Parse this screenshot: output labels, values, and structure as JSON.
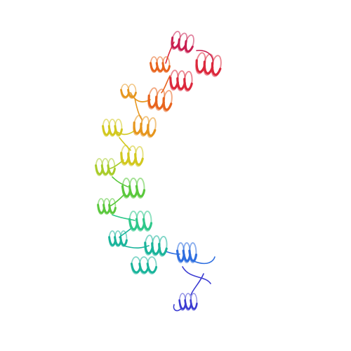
{
  "image": {
    "subject": "protein-ribbon-structure",
    "background": "#ffffff",
    "palette": {
      "n_terminus": "#3c3cd2",
      "blue": "#2f6fe0",
      "teal": "#19b49b",
      "cyan_green": "#2ec88a",
      "green": "#5ac83c",
      "yellow_green": "#a8cc28",
      "yellow": "#d2c81e",
      "orange": "#e6961e",
      "orange_red": "#e8641e",
      "red": "#dc283c",
      "c_terminus": "#c81e50"
    }
  }
}
